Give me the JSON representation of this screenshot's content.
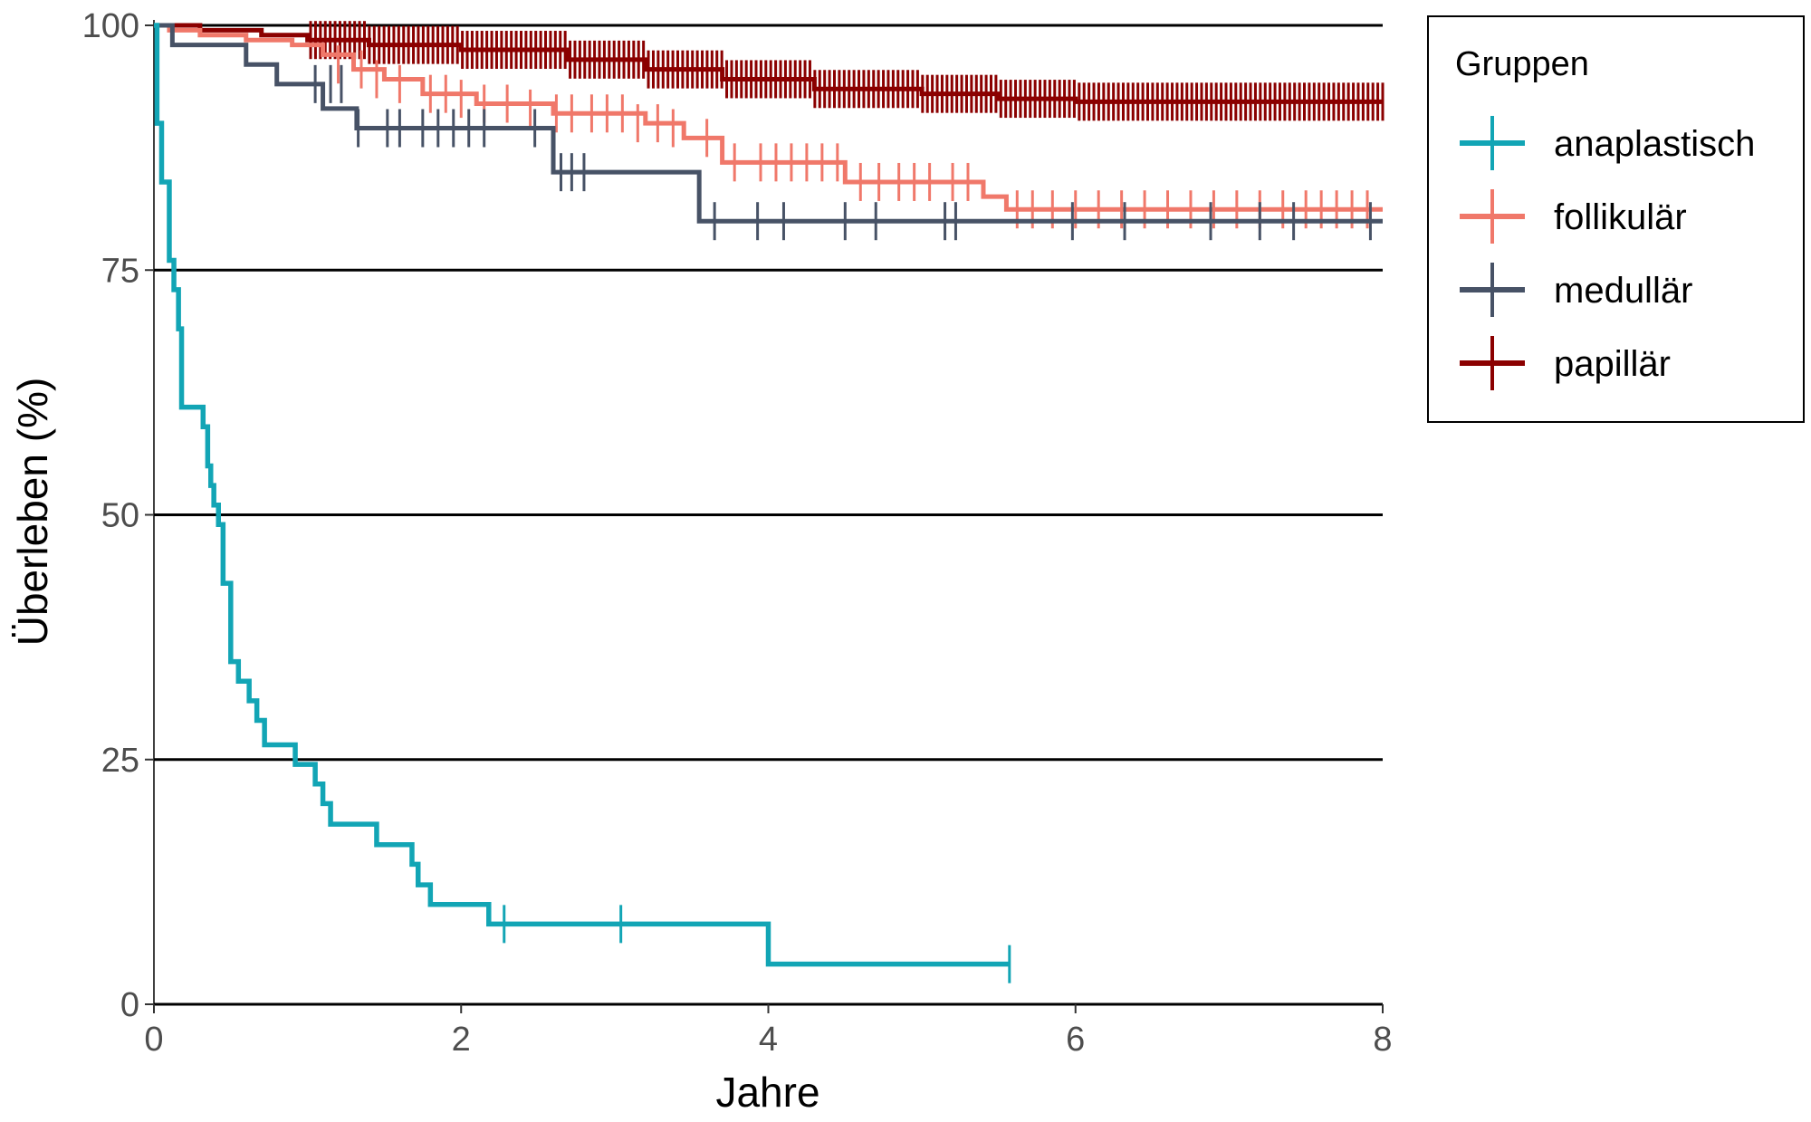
{
  "chart_data": {
    "type": "line",
    "subtype": "kaplan-meier",
    "xlabel": "Jahre",
    "ylabel": "Überleben (%)",
    "xlim": [
      0,
      8
    ],
    "ylim": [
      0,
      100
    ],
    "xticks": [
      0,
      2,
      4,
      6,
      8
    ],
    "yticks": [
      0,
      25,
      50,
      75,
      100
    ],
    "grid": "horizontal major lines",
    "legend": {
      "title": "Gruppen",
      "position": "right-top"
    },
    "series": [
      {
        "name": "anaplastisch",
        "color": "#12a5b5",
        "steps": [
          [
            0,
            100
          ],
          [
            0.02,
            90
          ],
          [
            0.05,
            84
          ],
          [
            0.1,
            76
          ],
          [
            0.13,
            73
          ],
          [
            0.16,
            69
          ],
          [
            0.18,
            61
          ],
          [
            0.32,
            59
          ],
          [
            0.35,
            55
          ],
          [
            0.37,
            53
          ],
          [
            0.39,
            51
          ],
          [
            0.42,
            49
          ],
          [
            0.45,
            43
          ],
          [
            0.5,
            35
          ],
          [
            0.55,
            33
          ],
          [
            0.62,
            31
          ],
          [
            0.67,
            29
          ],
          [
            0.72,
            26.5
          ],
          [
            0.92,
            24.5
          ],
          [
            1.05,
            22.5
          ],
          [
            1.1,
            20.5
          ],
          [
            1.15,
            18.4
          ],
          [
            1.45,
            16.3
          ],
          [
            1.68,
            14.3
          ],
          [
            1.72,
            12.2
          ],
          [
            1.8,
            10.2
          ],
          [
            2.18,
            8.2
          ],
          [
            4.0,
            4.1
          ],
          [
            5.57,
            4.1
          ]
        ],
        "censored": [
          [
            2.28,
            8.2
          ],
          [
            3.04,
            8.2
          ],
          [
            5.57,
            4.1
          ]
        ]
      },
      {
        "name": "follikulär",
        "color": "#f0786a",
        "steps": [
          [
            0,
            100
          ],
          [
            0.1,
            99.5
          ],
          [
            0.3,
            99
          ],
          [
            0.6,
            98.5
          ],
          [
            0.9,
            98
          ],
          [
            1.1,
            97
          ],
          [
            1.3,
            95.5
          ],
          [
            1.5,
            94.5
          ],
          [
            1.75,
            93
          ],
          [
            2.1,
            92
          ],
          [
            2.6,
            91
          ],
          [
            3.2,
            90
          ],
          [
            3.45,
            88.5
          ],
          [
            3.7,
            86
          ],
          [
            4.5,
            84
          ],
          [
            5.4,
            82.5
          ],
          [
            5.55,
            81.2
          ],
          [
            8,
            81.2
          ]
        ],
        "censored": [
          [
            1.2,
            96
          ],
          [
            1.35,
            95.5
          ],
          [
            1.45,
            94.5
          ],
          [
            1.6,
            94
          ],
          [
            1.8,
            93
          ],
          [
            1.9,
            93
          ],
          [
            2.0,
            92.5
          ],
          [
            2.15,
            92
          ],
          [
            2.3,
            92
          ],
          [
            2.45,
            91.5
          ],
          [
            2.62,
            91
          ],
          [
            2.72,
            91
          ],
          [
            2.85,
            91
          ],
          [
            2.95,
            91
          ],
          [
            3.05,
            91
          ],
          [
            3.15,
            90
          ],
          [
            3.28,
            90
          ],
          [
            3.38,
            89.5
          ],
          [
            3.6,
            88.5
          ],
          [
            3.78,
            86
          ],
          [
            3.95,
            86
          ],
          [
            4.05,
            86
          ],
          [
            4.15,
            86
          ],
          [
            4.25,
            86
          ],
          [
            4.35,
            86
          ],
          [
            4.45,
            86
          ],
          [
            4.6,
            84
          ],
          [
            4.72,
            84
          ],
          [
            4.85,
            84
          ],
          [
            4.95,
            84
          ],
          [
            5.05,
            84
          ],
          [
            5.2,
            84
          ],
          [
            5.3,
            84
          ],
          [
            5.62,
            81.2
          ],
          [
            5.72,
            81.2
          ],
          [
            5.85,
            81.2
          ],
          [
            6.0,
            81.2
          ],
          [
            6.15,
            81.2
          ],
          [
            6.3,
            81.2
          ],
          [
            6.45,
            81.2
          ],
          [
            6.6,
            81.2
          ],
          [
            6.75,
            81.2
          ],
          [
            6.9,
            81.2
          ],
          [
            7.05,
            81.2
          ],
          [
            7.2,
            81.2
          ],
          [
            7.35,
            81.2
          ],
          [
            7.5,
            81.2
          ],
          [
            7.6,
            81.2
          ],
          [
            7.7,
            81.2
          ],
          [
            7.8,
            81.2
          ],
          [
            7.9,
            81.2
          ]
        ]
      },
      {
        "name": "medullär",
        "color": "#475266",
        "steps": [
          [
            0,
            100
          ],
          [
            0.12,
            98
          ],
          [
            0.6,
            96
          ],
          [
            0.8,
            94
          ],
          [
            1.1,
            91.5
          ],
          [
            1.32,
            89.5
          ],
          [
            2.6,
            85
          ],
          [
            3.55,
            80
          ],
          [
            8,
            80
          ]
        ],
        "censored": [
          [
            1.05,
            94
          ],
          [
            1.15,
            94
          ],
          [
            1.22,
            94
          ],
          [
            1.33,
            89.5
          ],
          [
            1.52,
            89.5
          ],
          [
            1.6,
            89.5
          ],
          [
            1.75,
            89.5
          ],
          [
            1.85,
            89.5
          ],
          [
            1.95,
            89.5
          ],
          [
            2.05,
            89.5
          ],
          [
            2.15,
            89.5
          ],
          [
            2.48,
            89.5
          ],
          [
            2.65,
            85
          ],
          [
            2.72,
            85
          ],
          [
            2.8,
            85
          ],
          [
            3.65,
            80
          ],
          [
            3.93,
            80
          ],
          [
            4.1,
            80
          ],
          [
            4.5,
            80
          ],
          [
            4.7,
            80
          ],
          [
            5.15,
            80
          ],
          [
            5.22,
            80
          ],
          [
            5.98,
            80
          ],
          [
            6.32,
            80
          ],
          [
            6.88,
            80
          ],
          [
            7.2,
            80
          ],
          [
            7.42,
            80
          ],
          [
            7.92,
            80
          ]
        ]
      },
      {
        "name": "papillär",
        "color": "#8b0000",
        "steps": [
          [
            0,
            100
          ],
          [
            0.3,
            99.5
          ],
          [
            0.7,
            99
          ],
          [
            1.0,
            98.5
          ],
          [
            1.4,
            98
          ],
          [
            2.0,
            97.5
          ],
          [
            2.7,
            96.5
          ],
          [
            3.2,
            95.5
          ],
          [
            3.7,
            94.5
          ],
          [
            4.3,
            93.5
          ],
          [
            5.0,
            93
          ],
          [
            5.5,
            92.5
          ],
          [
            6.0,
            92.2
          ],
          [
            8,
            92.2
          ]
        ],
        "censored_from_to": [
          1.02,
          8.0
        ],
        "censored_count": 220
      }
    ]
  }
}
